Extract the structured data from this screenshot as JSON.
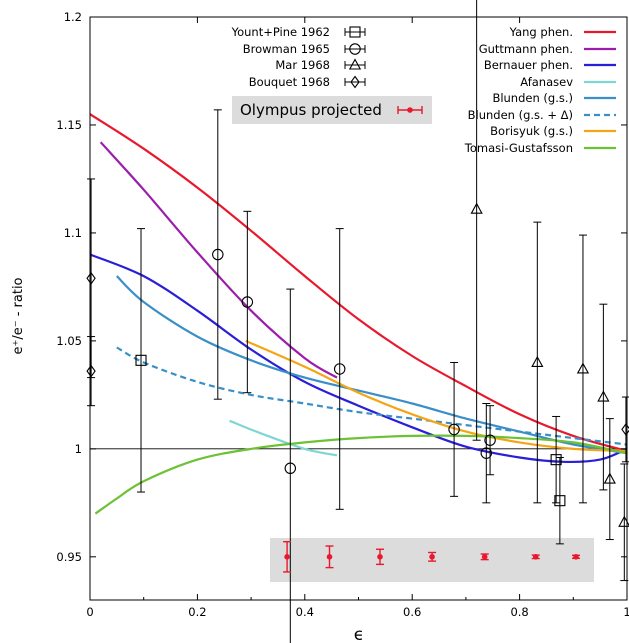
{
  "chart_data": {
    "type": "scatter",
    "xlabel": "ϵ",
    "ylabel": "e⁺/e⁻ - ratio",
    "xlim": [
      0,
      1
    ],
    "ylim": [
      0.93,
      1.2
    ],
    "xticks": [
      {
        "v": 0,
        "label": "0"
      },
      {
        "v": 0.2,
        "label": "0.2"
      },
      {
        "v": 0.4,
        "label": "0.4"
      },
      {
        "v": 0.6,
        "label": "0.6"
      },
      {
        "v": 0.8,
        "label": "0.8"
      },
      {
        "v": 1,
        "label": "1"
      }
    ],
    "yticks": [
      {
        "v": 0.95,
        "label": "0.95"
      },
      {
        "v": 1.0,
        "label": "1"
      },
      {
        "v": 1.05,
        "label": "1.05"
      },
      {
        "v": 1.1,
        "label": "1.1"
      },
      {
        "v": 1.15,
        "label": "1.15"
      },
      {
        "v": 1.2,
        "label": "1.2"
      }
    ],
    "reference_line": 1.0,
    "grid": false,
    "legend_placement": "top-right",
    "datasets": [
      {
        "name": "Yount+Pine 1962",
        "marker": "square",
        "points": [
          {
            "x": 0.095,
            "y": 1.041,
            "err": 0.061
          },
          {
            "x": 0.868,
            "y": 0.995,
            "err": 0.02
          },
          {
            "x": 0.875,
            "y": 0.976,
            "err": 0.02
          }
        ]
      },
      {
        "name": "Browman 1965",
        "marker": "circle",
        "points": [
          {
            "x": 0.238,
            "y": 1.09,
            "err": 0.067
          },
          {
            "x": 0.293,
            "y": 1.068,
            "err": 0.042
          },
          {
            "x": 0.373,
            "y": 0.991,
            "err": 0.083
          },
          {
            "x": 0.465,
            "y": 1.037,
            "err": 0.065
          },
          {
            "x": 0.678,
            "y": 1.009,
            "err": 0.031
          },
          {
            "x": 0.738,
            "y": 0.998,
            "err": 0.023
          },
          {
            "x": 0.745,
            "y": 1.004,
            "err": 0.016
          }
        ]
      },
      {
        "name": "Mar 1968",
        "marker": "triangle",
        "points": [
          {
            "x": 0.72,
            "y": 1.111,
            "err": 0.107
          },
          {
            "x": 0.833,
            "y": 1.04,
            "err": 0.065
          },
          {
            "x": 0.918,
            "y": 1.037,
            "err": 0.062
          },
          {
            "x": 0.956,
            "y": 1.024,
            "err": 0.043
          },
          {
            "x": 0.968,
            "y": 0.986,
            "err": 0.028
          },
          {
            "x": 0.995,
            "y": 0.966,
            "err": 0.027
          }
        ]
      },
      {
        "name": "Bouquet 1968",
        "marker": "diamond",
        "points": [
          {
            "x": 0.002,
            "y": 1.079,
            "err": 0.046
          },
          {
            "x": 0.002,
            "y": 1.036,
            "err": 0.016
          },
          {
            "x": 0.998,
            "y": 1.009,
            "err": 0.015
          }
        ]
      }
    ],
    "projected": {
      "name": "Olympus projected",
      "color": "#e8192c",
      "points": [
        {
          "x": 0.367,
          "y": 0.95,
          "err": 0.007
        },
        {
          "x": 0.446,
          "y": 0.95,
          "err": 0.005
        },
        {
          "x": 0.54,
          "y": 0.95,
          "err": 0.0035
        },
        {
          "x": 0.637,
          "y": 0.95,
          "err": 0.002
        },
        {
          "x": 0.735,
          "y": 0.95,
          "err": 0.0013
        },
        {
          "x": 0.83,
          "y": 0.95,
          "err": 0.0008
        },
        {
          "x": 0.905,
          "y": 0.95,
          "err": 0.0007
        }
      ]
    },
    "series": [
      {
        "name": "Yang phen.",
        "color": "#e8192c",
        "dash": false,
        "x": [
          0,
          0.1,
          0.2,
          0.3,
          0.4,
          0.5,
          0.6,
          0.7,
          0.8,
          0.9,
          1.0
        ],
        "y": [
          1.155,
          1.139,
          1.121,
          1.101,
          1.08,
          1.06,
          1.043,
          1.029,
          1.016,
          1.006,
          0.999
        ]
      },
      {
        "name": "Guttmann phen.",
        "color": "#9b1eaa",
        "dash": false,
        "x": [
          0.02,
          0.1,
          0.2,
          0.3,
          0.4,
          0.46
        ],
        "y": [
          1.142,
          1.12,
          1.091,
          1.064,
          1.042,
          1.033
        ]
      },
      {
        "name": "Bernauer phen.",
        "color": "#2a1fd8",
        "dash": false,
        "x": [
          0,
          0.1,
          0.2,
          0.3,
          0.4,
          0.5,
          0.6,
          0.7,
          0.8,
          0.88,
          0.95,
          1.0
        ],
        "y": [
          1.09,
          1.08,
          1.064,
          1.046,
          1.031,
          1.02,
          1.01,
          1.001,
          0.996,
          0.994,
          0.995,
          1.0
        ]
      },
      {
        "name": "Afanasev",
        "color": "#7fd7d3",
        "dash": false,
        "x": [
          0.26,
          0.32,
          0.4,
          0.46
        ],
        "y": [
          1.013,
          1.007,
          1.0,
          0.997
        ]
      },
      {
        "name": "Blunden (g.s.)",
        "color": "#3a8fc8",
        "dash": false,
        "x": [
          0.05,
          0.1,
          0.2,
          0.3,
          0.4,
          0.5,
          0.6,
          0.7,
          0.8,
          0.9,
          1.0
        ],
        "y": [
          1.08,
          1.068,
          1.052,
          1.041,
          1.033,
          1.027,
          1.021,
          1.014,
          1.008,
          1.002,
          0.998
        ]
      },
      {
        "name": "Blunden (g.s. + Δ)",
        "color": "#3a8fc8",
        "dash": true,
        "x": [
          0.05,
          0.1,
          0.2,
          0.3,
          0.4,
          0.5,
          0.6,
          0.7,
          0.8,
          0.9,
          1.0
        ],
        "y": [
          1.047,
          1.04,
          1.031,
          1.025,
          1.021,
          1.017,
          1.014,
          1.011,
          1.008,
          1.005,
          1.002
        ]
      },
      {
        "name": "Borisyuk (g.s.)",
        "color": "#f4a516",
        "dash": false,
        "x": [
          0.29,
          0.4,
          0.5,
          0.6,
          0.7,
          0.8,
          0.9,
          1.0
        ],
        "y": [
          1.05,
          1.038,
          1.026,
          1.016,
          1.008,
          1.003,
          1.0,
          0.999
        ]
      },
      {
        "name": "Tomasi-Gustafsson",
        "color": "#6cc234",
        "dash": false,
        "x": [
          0.01,
          0.05,
          0.1,
          0.2,
          0.3,
          0.4,
          0.5,
          0.6,
          0.7,
          0.8,
          0.9,
          1.0
        ],
        "y": [
          0.97,
          0.977,
          0.985,
          0.995,
          1.0,
          1.003,
          1.005,
          1.006,
          1.006,
          1.005,
          1.003,
          0.998
        ]
      }
    ]
  }
}
